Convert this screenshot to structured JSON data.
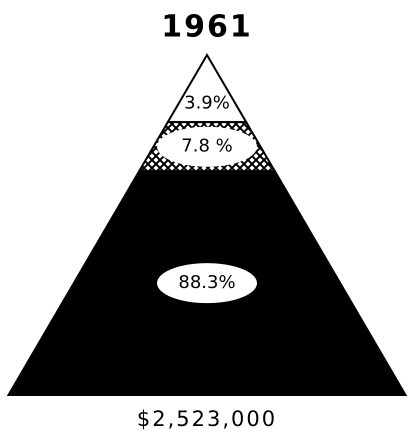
{
  "chart_data": {
    "type": "pyramid",
    "title": "1961",
    "categories": [
      null,
      null,
      null
    ],
    "values": [
      3.9,
      7.8,
      88.3
    ],
    "value_labels": [
      "3.9%",
      "7.8 %",
      "88.3%"
    ],
    "colors": [
      "#ffffff",
      "#000000",
      "#000000"
    ],
    "patterns": [
      "none",
      "crosshatch",
      "solid"
    ],
    "total_label": "$2,523,000"
  }
}
